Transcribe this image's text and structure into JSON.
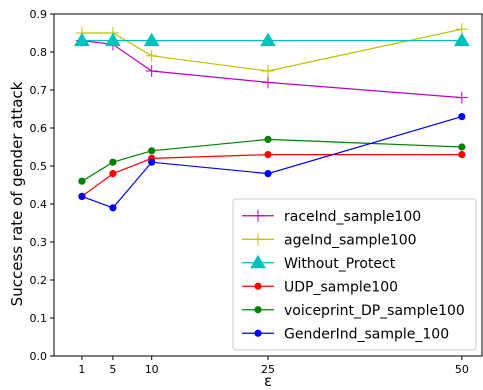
{
  "chart_data": {
    "type": "line",
    "title": "",
    "xlabel": "ε",
    "ylabel": "Success rate of gender attack",
    "x": [
      1,
      5,
      10,
      25,
      50
    ],
    "xticks": [
      "1",
      "5",
      "10",
      "25",
      "50"
    ],
    "xlim": [
      -2.6,
      52.6
    ],
    "ylim": [
      0.0,
      0.9
    ],
    "yticks": [
      "0.0",
      "0.1",
      "0.2",
      "0.3",
      "0.4",
      "0.5",
      "0.6",
      "0.7",
      "0.8",
      "0.9"
    ],
    "grid": false,
    "legend_position": "lower-right",
    "series": [
      {
        "name": "raceInd_sample100",
        "color": "#bf00bf",
        "marker": "plus",
        "values": [
          0.83,
          0.82,
          0.75,
          0.72,
          0.68
        ]
      },
      {
        "name": "ageInd_sample100",
        "color": "#bfbf00",
        "marker": "plus",
        "values": [
          0.85,
          0.85,
          0.79,
          0.75,
          0.86
        ]
      },
      {
        "name": "Without_Protect",
        "color": "#00bfbf",
        "marker": "triangle",
        "values": [
          0.83,
          0.83,
          0.83,
          0.83,
          0.83
        ]
      },
      {
        "name": "UDP_sample100",
        "color": "#ff0000",
        "marker": "circle",
        "values": [
          0.42,
          0.48,
          0.52,
          0.53,
          0.53
        ]
      },
      {
        "name": "voiceprint_DP_sample100",
        "color": "#008000",
        "marker": "circle",
        "values": [
          0.46,
          0.51,
          0.54,
          0.57,
          0.55
        ]
      },
      {
        "name": "GenderInd_sample_100",
        "color": "#0000ff",
        "marker": "circle",
        "values": [
          0.42,
          0.39,
          0.51,
          0.48,
          0.63
        ]
      }
    ]
  }
}
